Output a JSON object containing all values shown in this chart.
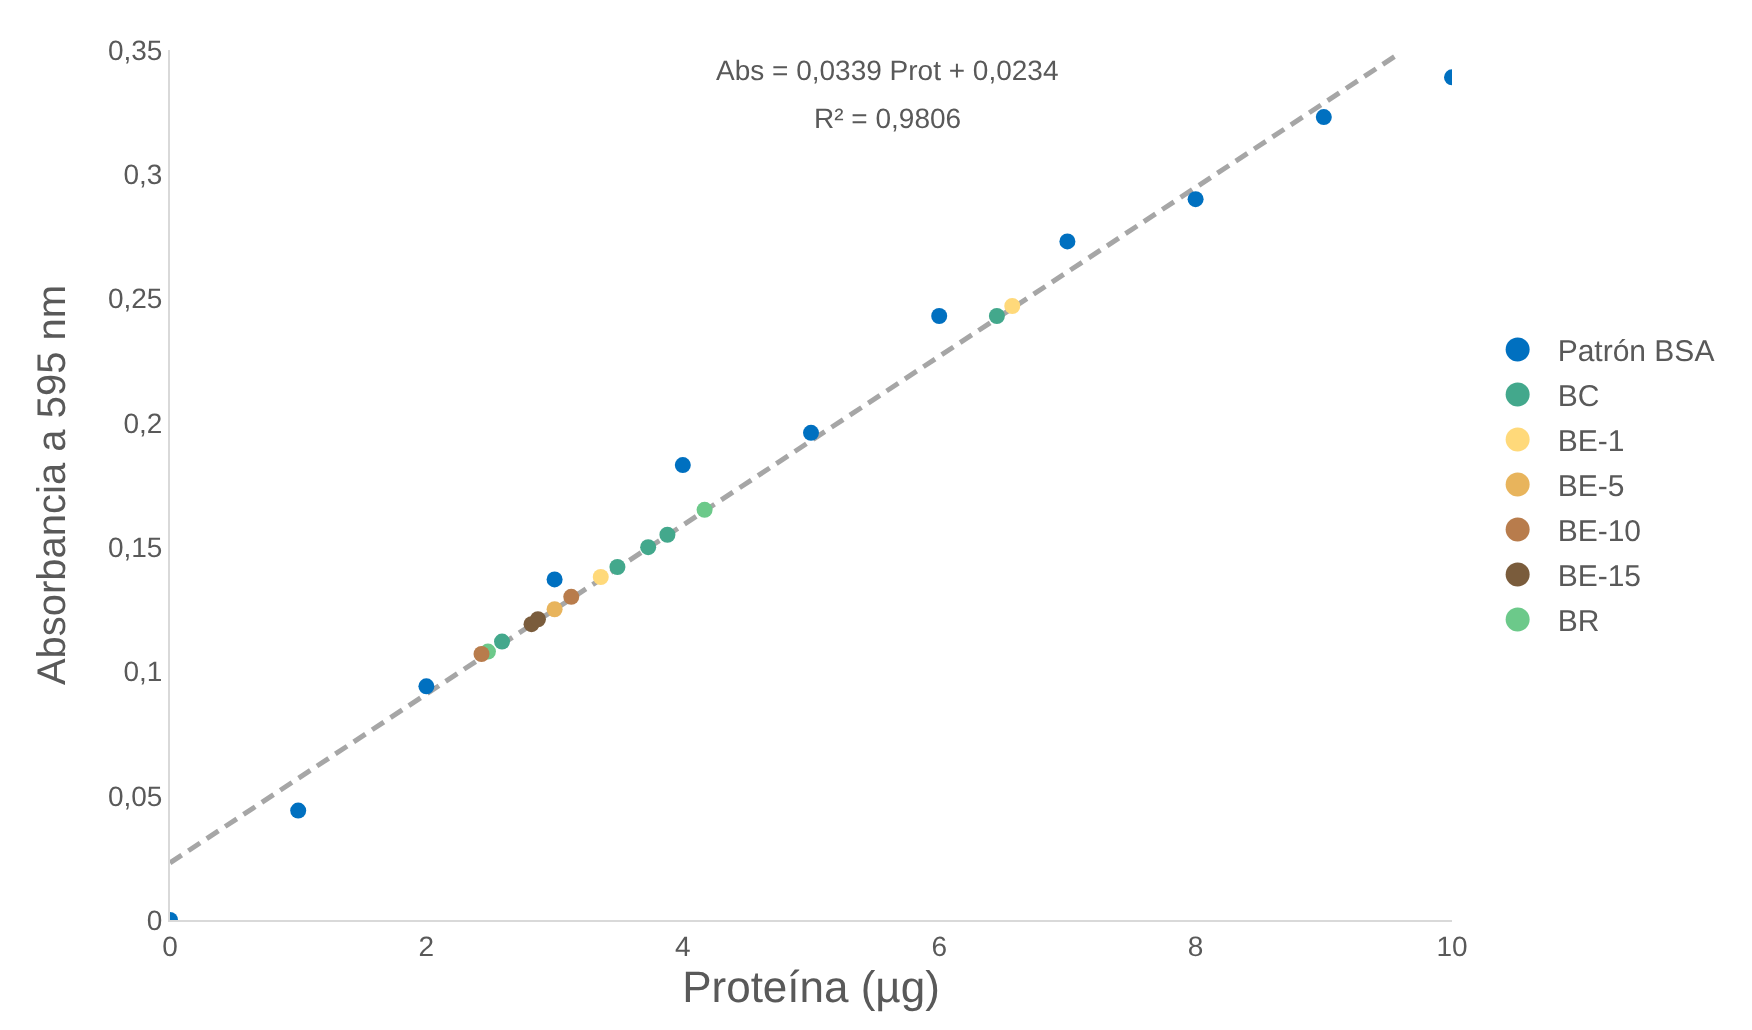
{
  "chart_data": {
    "type": "scatter",
    "xlabel": "Proteína (µg)",
    "ylabel": "Absorbancia a 595 nm",
    "annotations": [
      "Abs = 0,0339 Prot + 0,0234",
      "R² = 0,9806"
    ],
    "xlim": [
      0,
      10
    ],
    "xticks": [
      0,
      2,
      4,
      6,
      8,
      10
    ],
    "ylim": [
      0,
      0.35
    ],
    "yticks": [
      {
        "value": 0,
        "label": "0"
      },
      {
        "value": 0.05,
        "label": "0,05"
      },
      {
        "value": 0.1,
        "label": "0,1"
      },
      {
        "value": 0.15,
        "label": "0,15"
      },
      {
        "value": 0.2,
        "label": "0,2"
      },
      {
        "value": 0.25,
        "label": "0,25"
      },
      {
        "value": 0.3,
        "label": "0,3"
      },
      {
        "value": 0.35,
        "label": "0,35"
      }
    ],
    "grid": false,
    "legend": "right",
    "marker": "circle",
    "series": [
      {
        "type": "line",
        "color": "#a6a6a6",
        "line_style": "dashed",
        "marker": "none",
        "x": [
          0,
          9.6
        ],
        "values": [
          0.023,
          0.349
        ]
      },
      {
        "name": "Patrón BSA",
        "color": "#0070c0",
        "x": [
          0,
          1,
          2,
          3,
          4,
          5,
          6,
          7,
          8,
          9,
          10
        ],
        "values": [
          0,
          0.044,
          0.094,
          0.137,
          0.183,
          0.196,
          0.243,
          0.273,
          0.29,
          0.323,
          0.339
        ]
      },
      {
        "name": "BC",
        "color": "#43a88c",
        "x": [
          2.59,
          3.49,
          3.73,
          3.88,
          6.45
        ],
        "values": [
          0.112,
          0.142,
          0.15,
          0.155,
          0.243
        ]
      },
      {
        "name": "BE-1",
        "color": "#ffd97a",
        "x": [
          3.36,
          6.57
        ],
        "values": [
          0.138,
          0.247
        ]
      },
      {
        "name": "BE-5",
        "color": "#e8b45c",
        "x": [
          3.0
        ],
        "values": [
          0.125
        ]
      },
      {
        "name": "BE-10",
        "color": "#b87c4c",
        "x": [
          2.43,
          3.13
        ],
        "values": [
          0.107,
          0.13
        ]
      },
      {
        "name": "BE-15",
        "color": "#7a5c3c",
        "x": [
          2.82,
          2.87
        ],
        "values": [
          0.119,
          0.121
        ]
      },
      {
        "name": "BR",
        "color": "#6cc98a",
        "x": [
          2.48,
          4.17
        ],
        "values": [
          0.108,
          0.165
        ]
      }
    ]
  }
}
